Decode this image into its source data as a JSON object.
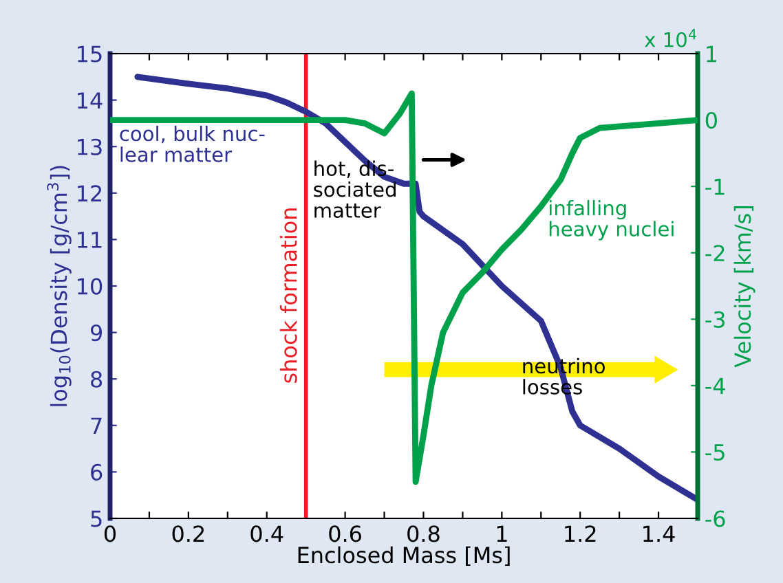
{
  "chart_data": {
    "type": "line",
    "xlabel": "Enclosed Mass [Ms]",
    "ylabel": "log$_{10}$(Density [g/cm$^{3}$])",
    "y2label": "Velocity [km/s]",
    "xlim": [
      0,
      1.5
    ],
    "xticks": [
      0,
      {
        "value": 0.1,
        "label": null
      },
      0.2,
      {
        "value": 0.3,
        "label": null
      },
      0.4,
      {
        "value": 0.5,
        "label": null
      },
      0.6,
      {
        "value": 0.7,
        "label": null
      },
      0.8,
      {
        "value": 0.9,
        "label": null
      },
      1,
      {
        "value": 1.1,
        "label": null
      },
      1.2,
      {
        "value": 1.3,
        "label": null
      },
      1.4
    ],
    "ylim": [
      5,
      15
    ],
    "yticks": [
      5,
      6,
      7,
      8,
      9,
      10,
      11,
      12,
      13,
      14,
      15
    ],
    "y2lim": [
      -6,
      1
    ],
    "y2ticks": [
      -6,
      -5,
      -4,
      -3,
      -2,
      -1,
      0,
      1
    ],
    "grid": false,
    "series": [
      {
        "color": "#2e3192",
        "x": [
          0.07,
          0.2,
          0.3,
          0.4,
          0.45,
          0.5,
          0.55,
          0.6,
          0.65,
          0.7,
          0.75,
          0.78,
          0.79,
          0.8,
          0.9,
          1.0,
          1.1,
          1.15,
          1.18,
          1.2,
          1.3,
          1.4,
          1.5
        ],
        "values": [
          14.5,
          14.35,
          14.25,
          14.1,
          13.95,
          13.75,
          13.5,
          13.1,
          12.7,
          12.35,
          12.2,
          12.2,
          11.6,
          11.5,
          10.9,
          10.0,
          9.25,
          8.25,
          7.3,
          7.0,
          6.5,
          5.9,
          5.4
        ]
      },
      {
        "color": "#00a14b",
        "axis": "y2",
        "x": [
          0,
          0.3,
          0.6,
          0.65,
          0.7,
          0.74,
          0.77,
          0.775,
          0.78,
          0.8,
          0.82,
          0.85,
          0.9,
          0.95,
          1.0,
          1.05,
          1.1,
          1.15,
          1.18,
          1.2,
          1.25,
          1.4,
          1.5
        ],
        "values": [
          0,
          0,
          0,
          -0.05,
          -0.2,
          0.1,
          0.4,
          -2.5,
          -5.45,
          -4.75,
          -4.0,
          -3.2,
          -2.6,
          -2.3,
          -1.95,
          -1.65,
          -1.3,
          -0.9,
          -0.5,
          -0.27,
          -0.12,
          -0.05,
          0
        ]
      }
    ],
    "ref_lines": [
      {
        "axis": "x",
        "value": 0.5,
        "label": "shock formation",
        "color": "#ed1c24"
      }
    ],
    "annotations": [
      "x 10$^{4}$",
      "cool, bulk nuc-\nlear matter",
      "hot, dis-\nsociated\nmatter",
      "infalling\nheavy nuclei",
      "neutrino\nlosses"
    ]
  }
}
